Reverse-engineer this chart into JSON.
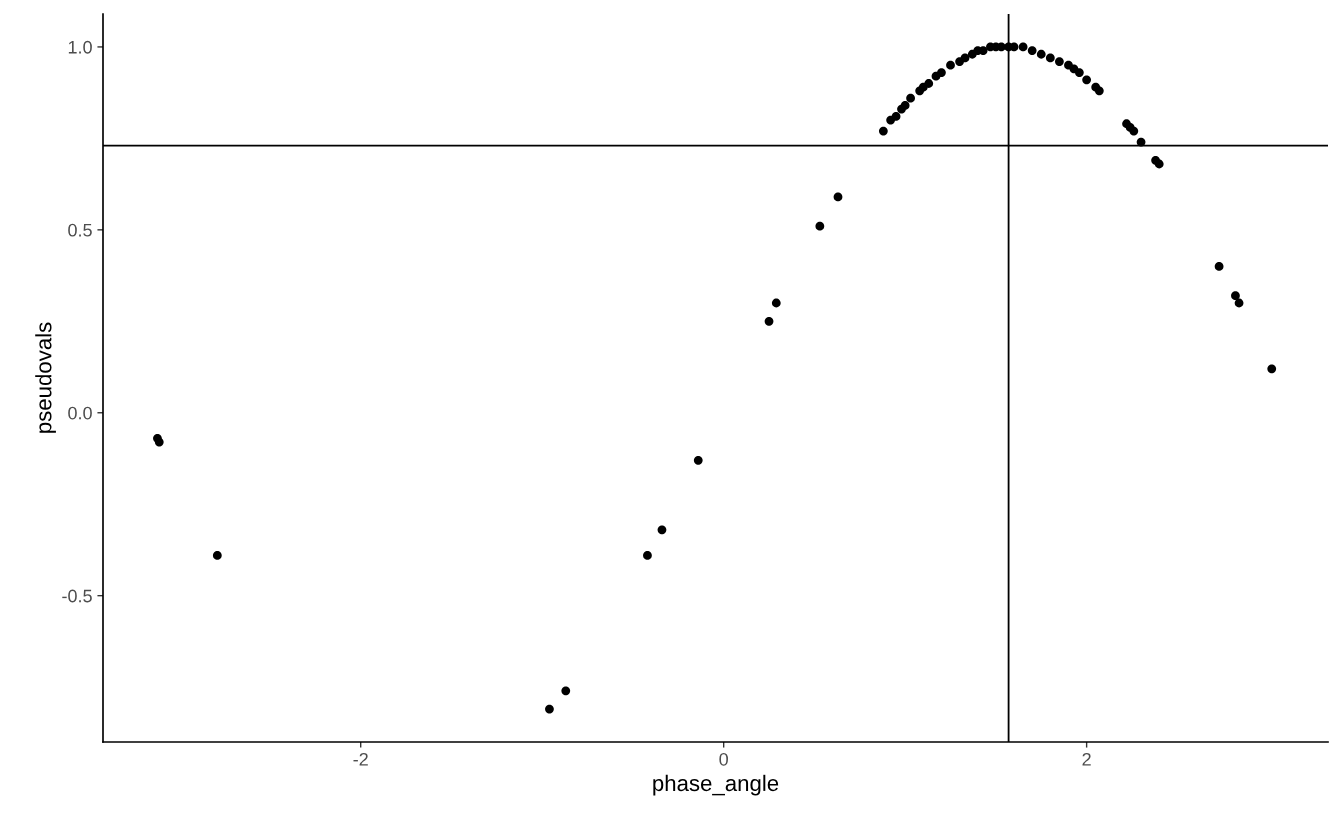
{
  "chart_data": {
    "type": "scatter",
    "xlabel": "phase_angle",
    "ylabel": "pseudovals",
    "x": [
      -3.12,
      -3.11,
      -2.79,
      -0.96,
      -0.87,
      -0.42,
      -0.34,
      -0.14,
      0.25,
      0.29,
      0.53,
      0.63,
      0.88,
      0.92,
      0.95,
      0.98,
      1.0,
      1.03,
      1.08,
      1.1,
      1.13,
      1.17,
      1.2,
      1.25,
      1.3,
      1.33,
      1.37,
      1.4,
      1.43,
      1.47,
      1.5,
      1.53,
      1.57,
      1.6,
      1.65,
      1.7,
      1.75,
      1.8,
      1.85,
      1.9,
      1.93,
      1.96,
      2.0,
      2.05,
      2.07,
      2.22,
      2.24,
      2.26,
      2.3,
      2.38,
      2.4,
      2.73,
      2.82,
      2.84,
      3.02
    ],
    "values": [
      -0.07,
      -0.08,
      -0.39,
      -0.81,
      -0.76,
      -0.39,
      -0.32,
      -0.13,
      0.25,
      0.3,
      0.51,
      0.59,
      0.77,
      0.8,
      0.81,
      0.83,
      0.84,
      0.86,
      0.88,
      0.89,
      0.9,
      0.92,
      0.93,
      0.95,
      0.96,
      0.97,
      0.98,
      0.99,
      0.99,
      1.0,
      1.0,
      1.0,
      1.0,
      1.0,
      1.0,
      0.99,
      0.98,
      0.97,
      0.96,
      0.95,
      0.94,
      0.93,
      0.91,
      0.89,
      0.88,
      0.79,
      0.78,
      0.77,
      0.74,
      0.69,
      0.68,
      0.4,
      0.32,
      0.3,
      0.12
    ],
    "color": "#000000",
    "marker": "circle",
    "grid": false,
    "legend": false,
    "xlim": [
      -3.42,
      3.33
    ],
    "ylim": [
      -0.9,
      1.09
    ],
    "xticks": [
      -2,
      0,
      2
    ],
    "yticks": [
      {
        "value": -0.5,
        "label": "-0.5"
      },
      {
        "value": 0,
        "label": "0.0"
      },
      {
        "value": 0.5,
        "label": "0.5"
      },
      {
        "value": 1,
        "label": "1.0"
      }
    ],
    "ref_lines": [
      {
        "axis": "x",
        "value": 1.57,
        "color": "#000000"
      },
      {
        "axis": "y",
        "value": 0.73,
        "color": "#000000"
      }
    ]
  }
}
